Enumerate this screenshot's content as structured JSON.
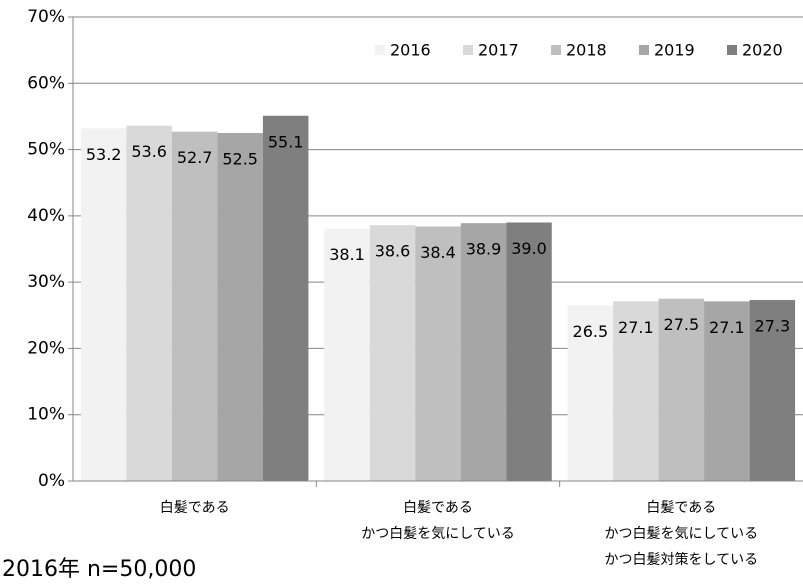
{
  "chart_data": {
    "type": "bar",
    "categories": [
      [
        "白髪である"
      ],
      [
        "白髪である",
        "かつ白髪を気にしている"
      ],
      [
        "白髪である",
        "かつ白髪を気にしている",
        "かつ白髪対策をしている"
      ]
    ],
    "series": [
      {
        "name": "2016",
        "color": "#f2f2f2",
        "values": [
          53.2,
          38.1,
          26.5
        ],
        "value_labels": [
          "53.2",
          "38.1",
          "26.5"
        ]
      },
      {
        "name": "2017",
        "color": "#d9d9d9",
        "values": [
          53.6,
          38.6,
          27.1
        ],
        "value_labels": [
          "53.6",
          "38.6",
          "27.1"
        ]
      },
      {
        "name": "2018",
        "color": "#bfbfbf",
        "values": [
          52.7,
          38.4,
          27.5
        ],
        "value_labels": [
          "52.7",
          "38.4",
          "27.5"
        ]
      },
      {
        "name": "2019",
        "color": "#a6a6a6",
        "values": [
          52.5,
          38.9,
          27.1
        ],
        "value_labels": [
          "52.5",
          "38.9",
          "27.1"
        ]
      },
      {
        "name": "2020",
        "color": "#7f7f7f",
        "values": [
          55.1,
          39.0,
          27.3
        ],
        "value_labels": [
          "55.1",
          "39.0",
          "27.3"
        ]
      }
    ],
    "ylim": [
      0,
      70
    ],
    "yticks": [
      {
        "value": 0,
        "label": "0%"
      },
      {
        "value": 10,
        "label": "10%"
      },
      {
        "value": 20,
        "label": "20%"
      },
      {
        "value": 30,
        "label": "30%"
      },
      {
        "value": 40,
        "label": "40%"
      },
      {
        "value": 50,
        "label": "50%"
      },
      {
        "value": 60,
        "label": "60%"
      },
      {
        "value": 70,
        "label": "70%"
      }
    ],
    "grid": true,
    "legend": "top-right",
    "annotation": "2016年  n=50,000"
  }
}
